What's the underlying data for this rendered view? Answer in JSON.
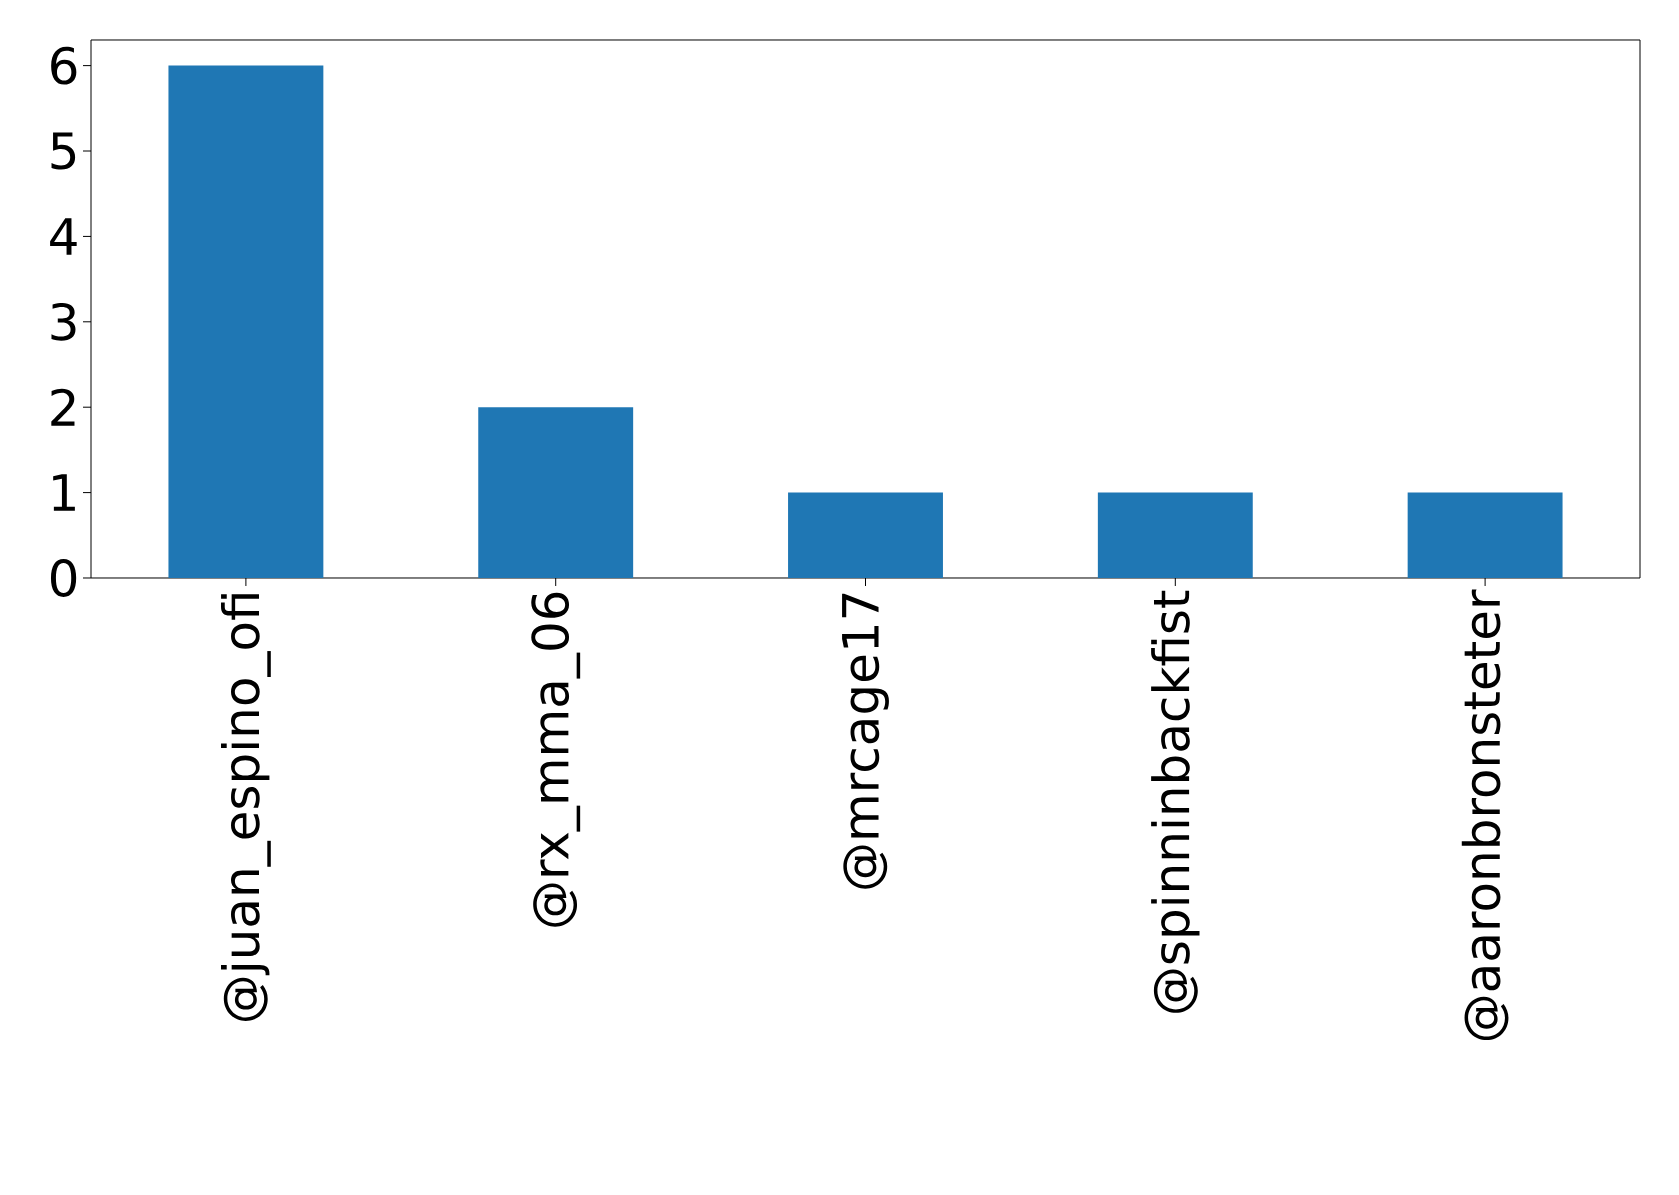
{
  "chart_data": {
    "type": "bar",
    "categories": [
      "@juan_espino_ofi",
      "@rx_mma_06",
      "@mrcage17",
      "@spinninbackfist",
      "@aaronbronsteter"
    ],
    "values": [
      6,
      2,
      1,
      1,
      1
    ],
    "color": "#1f77b4",
    "ylim": [
      0,
      6.3
    ],
    "yticks": [
      0,
      1,
      2,
      3,
      4,
      5,
      6
    ]
  }
}
